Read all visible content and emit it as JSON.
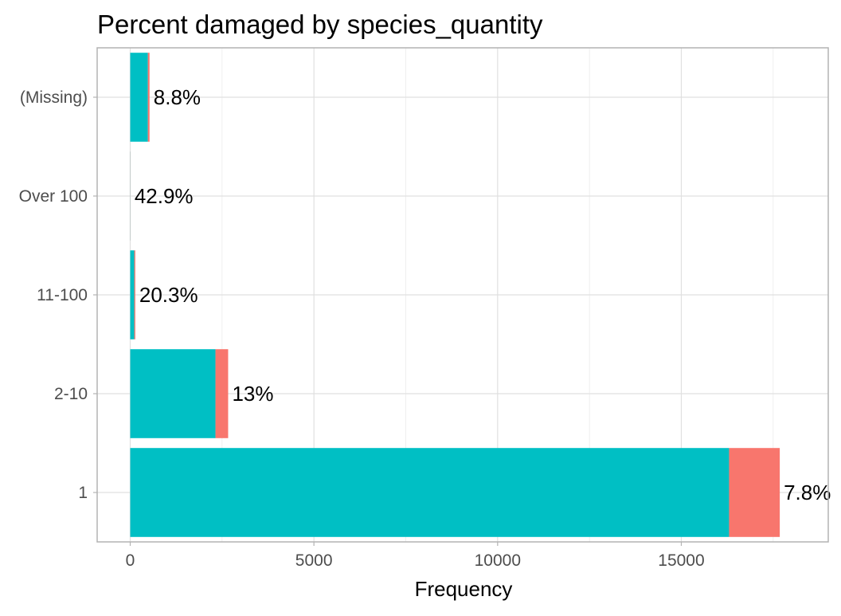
{
  "chart_data": {
    "type": "bar",
    "orientation": "horizontal",
    "stacked": true,
    "title": "Percent damaged by species_quantity",
    "xlabel": "Frequency",
    "ylabel": "",
    "categories": [
      "1",
      "2-10",
      "11-100",
      "Over 100",
      "(Missing)"
    ],
    "series": [
      {
        "color": "#00BFC4",
        "values": [
          16300,
          2320,
          110,
          4,
          480
        ]
      },
      {
        "color": "#F8766D",
        "values": [
          1380,
          345,
          28,
          3,
          46
        ]
      }
    ],
    "totals": [
      17680,
      2665,
      138,
      7,
      526
    ],
    "data_labels": [
      "7.8%",
      "13%",
      "20.3%",
      "42.9%",
      "8.8%"
    ],
    "xlim": [
      -900,
      19000
    ],
    "x_ticks": [
      0,
      5000,
      10000,
      15000
    ],
    "x_tick_labels": [
      "0",
      "5000",
      "10000",
      "15000"
    ],
    "grid": true,
    "legend": "none"
  }
}
